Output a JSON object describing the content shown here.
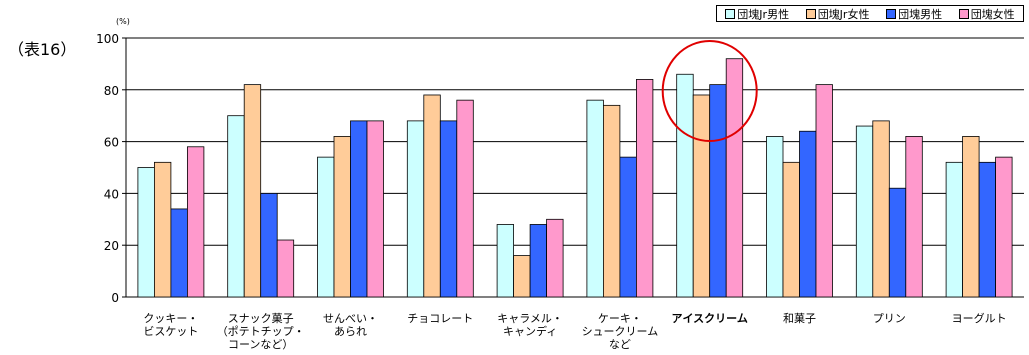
{
  "figure_label": "（表16）",
  "chart_data": {
    "type": "bar",
    "unit": "(%)",
    "ylim": [
      0,
      100
    ],
    "yticks": [
      0,
      20,
      40,
      60,
      80,
      100
    ],
    "grid": true,
    "legend_placement": "top-right",
    "categories": [
      [
        "クッキー・",
        "ビスケット"
      ],
      [
        "スナック菓子",
        "（ポテトチップ・",
        "コーンなど）"
      ],
      [
        "せんべい・",
        "あられ"
      ],
      [
        "チョコレート"
      ],
      [
        "キャラメル・",
        "キャンディ"
      ],
      [
        "ケーキ・",
        "シュークリーム",
        "など"
      ],
      [
        "アイスクリーム"
      ],
      [
        "和菓子"
      ],
      [
        "プリン"
      ],
      [
        "ヨーグルト"
      ]
    ],
    "highlighted_category_index": 6,
    "series": [
      {
        "name": "団塊Jr男性",
        "color": "#ccffff",
        "values": [
          50,
          70,
          54,
          68,
          28,
          76,
          86,
          62,
          66,
          52
        ]
      },
      {
        "name": "団塊Jr女性",
        "color": "#ffcc99",
        "values": [
          52,
          82,
          62,
          78,
          16,
          74,
          78,
          52,
          68,
          62
        ]
      },
      {
        "name": "団塊男性",
        "color": "#3366ff",
        "values": [
          34,
          40,
          68,
          68,
          28,
          54,
          82,
          64,
          42,
          52
        ]
      },
      {
        "name": "団塊女性",
        "color": "#ff99cc",
        "values": [
          58,
          22,
          68,
          76,
          30,
          84,
          92,
          82,
          62,
          54
        ]
      }
    ],
    "annotation": {
      "type": "circle",
      "color": "#e00000",
      "category_index": 6
    }
  }
}
